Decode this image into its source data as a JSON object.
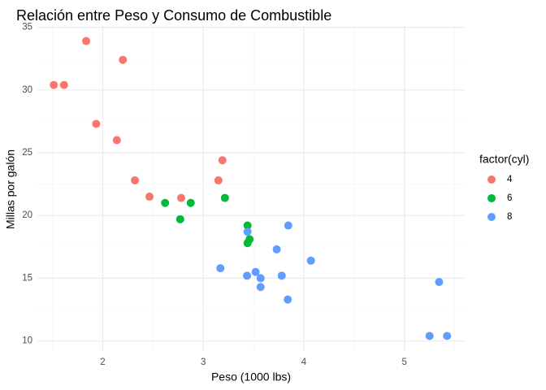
{
  "chart_data": {
    "type": "scatter",
    "title": "Relación entre Peso y Consumo de Combustible",
    "xlabel": "Peso (1000 lbs)",
    "ylabel": "Millas por galón",
    "xlim": [
      1.35,
      5.6
    ],
    "ylim": [
      9.2,
      35.1
    ],
    "x_ticks": [
      2,
      3,
      4,
      5
    ],
    "y_ticks": [
      10,
      15,
      20,
      25,
      30,
      35
    ],
    "x_minor_ticks": [
      1.5,
      2.5,
      3.5,
      4.5,
      5.5
    ],
    "y_minor_ticks": [
      12.5,
      17.5,
      22.5,
      27.5,
      32.5
    ],
    "grid": true,
    "legend": {
      "title": "factor(cyl)",
      "position": "right"
    },
    "series": [
      {
        "name": "4",
        "color": "#F8766D",
        "points": [
          [
            2.32,
            22.8
          ],
          [
            3.19,
            24.4
          ],
          [
            3.15,
            22.8
          ],
          [
            2.2,
            32.4
          ],
          [
            1.615,
            30.4
          ],
          [
            1.835,
            33.9
          ],
          [
            2.465,
            21.5
          ],
          [
            1.935,
            27.3
          ],
          [
            2.14,
            26.0
          ],
          [
            1.513,
            30.4
          ],
          [
            2.78,
            21.4
          ]
        ]
      },
      {
        "name": "6",
        "color": "#00BA38",
        "points": [
          [
            2.62,
            21.0
          ],
          [
            2.875,
            21.0
          ],
          [
            3.215,
            21.4
          ],
          [
            3.46,
            18.1
          ],
          [
            3.44,
            19.2
          ],
          [
            3.44,
            17.8
          ],
          [
            2.77,
            19.7
          ]
        ]
      },
      {
        "name": "8",
        "color": "#619CFF",
        "points": [
          [
            3.44,
            18.7
          ],
          [
            3.57,
            14.3
          ],
          [
            4.07,
            16.4
          ],
          [
            3.73,
            17.3
          ],
          [
            3.78,
            15.2
          ],
          [
            5.25,
            10.4
          ],
          [
            5.424,
            10.4
          ],
          [
            5.345,
            14.7
          ],
          [
            3.52,
            15.5
          ],
          [
            3.435,
            15.2
          ],
          [
            3.84,
            13.3
          ],
          [
            3.845,
            19.2
          ],
          [
            3.17,
            15.8
          ],
          [
            3.57,
            15.0
          ]
        ]
      }
    ]
  }
}
